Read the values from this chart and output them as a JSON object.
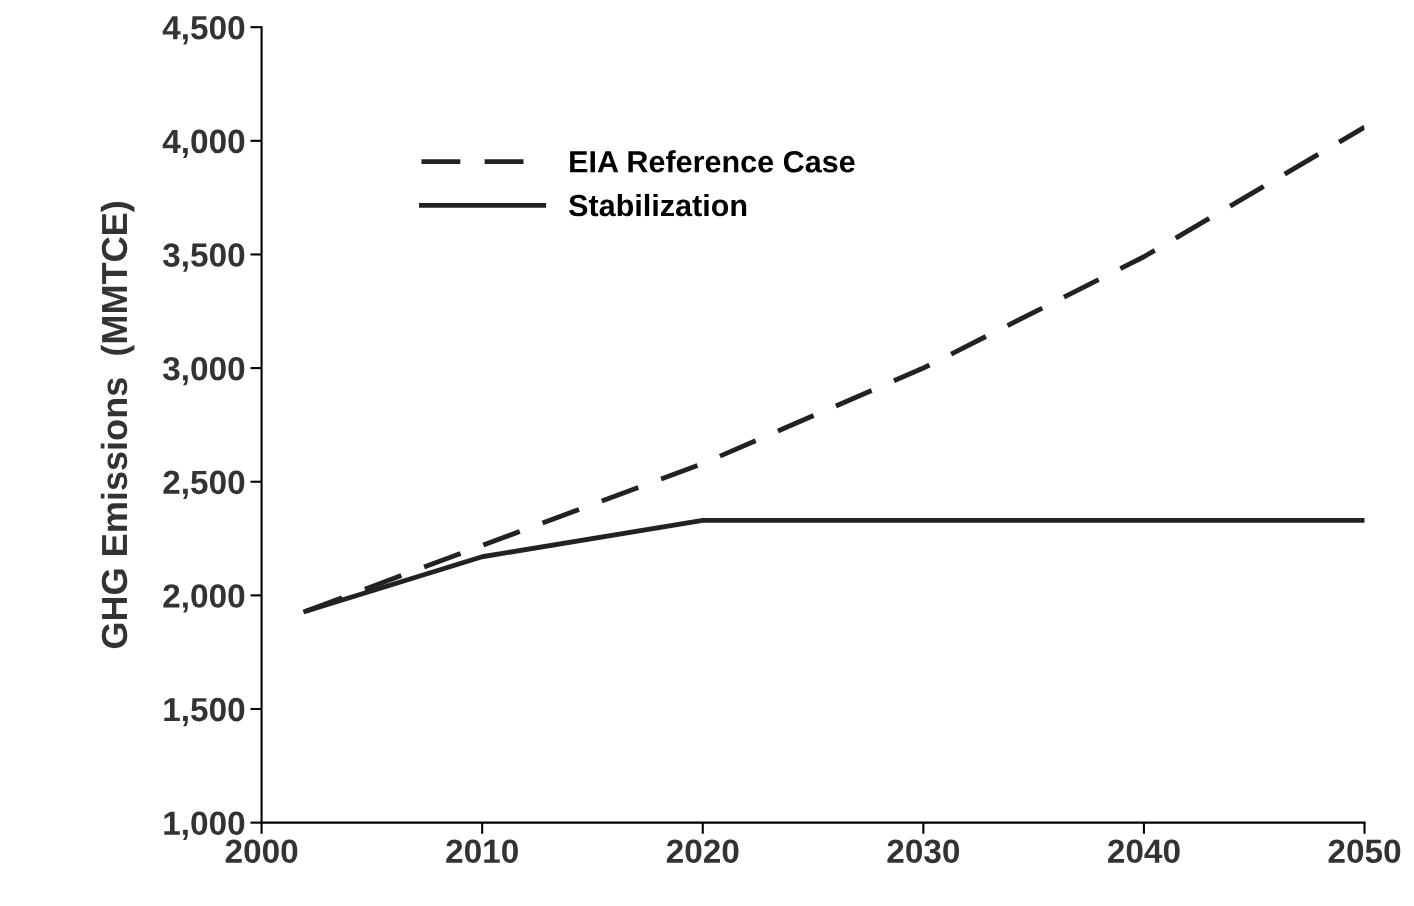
{
  "chart_data": {
    "type": "line",
    "ylabel": "GHG Emissions  (MMTCE)",
    "x": [
      2002,
      2010,
      2020,
      2030,
      2040,
      2050
    ],
    "series": [
      {
        "name": "EIA Reference Case",
        "color": "#222222",
        "line_style": "dashed",
        "values": [
          1930,
          2220,
          2580,
          3000,
          3490,
          4060
        ]
      },
      {
        "name": "Stabilization",
        "color": "#222222",
        "line_style": "solid",
        "values": [
          1930,
          2170,
          2330,
          2330,
          2330,
          2330
        ]
      }
    ],
    "xlim": [
      2000,
      2050
    ],
    "xticks": [
      2000,
      2010,
      2020,
      2030,
      2040,
      2050
    ],
    "ylim": [
      1000,
      4500
    ],
    "yticks": [
      {
        "value": 1000,
        "label": "1,000"
      },
      {
        "value": 1500,
        "label": "1,500"
      },
      {
        "value": 2000,
        "label": "2,000"
      },
      {
        "value": 2500,
        "label": "2,500"
      },
      {
        "value": 3000,
        "label": "3,000"
      },
      {
        "value": 3500,
        "label": "3,500"
      },
      {
        "value": 4000,
        "label": "4,000"
      },
      {
        "value": 4500,
        "label": "4,500"
      }
    ],
    "grid": false,
    "legend": "top left",
    "marker": "none"
  }
}
